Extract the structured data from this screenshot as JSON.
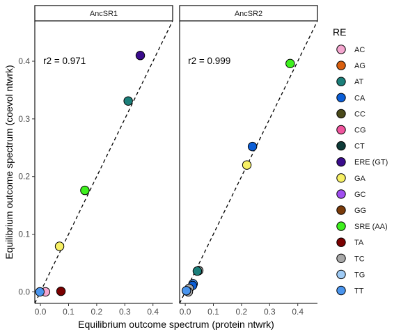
{
  "chart_data": {
    "type": "scatter",
    "xlabel": "Equilibrium outcome spectrum (protein ntwrk)",
    "ylabel": "Equilibrium outcome spectrum (coevol ntwrk)",
    "xlim": [
      -0.02,
      0.47
    ],
    "ylim": [
      -0.02,
      0.47
    ],
    "x_ticks": [
      0.0,
      0.1,
      0.2,
      0.3,
      0.4
    ],
    "y_ticks": [
      0.0,
      0.1,
      0.2,
      0.3,
      0.4
    ],
    "x_tick_labels": [
      "0.0",
      "0.1",
      "0.2",
      "0.3",
      "0.4"
    ],
    "y_tick_labels": [
      "0.0",
      "0.1",
      "0.2",
      "0.3",
      "0.4"
    ],
    "reference_line": "y = x (dashed)",
    "legend": {
      "title": "RE",
      "position": "right",
      "entries": [
        {
          "label": "AC",
          "color": "#F4A6CF"
        },
        {
          "label": "AG",
          "color": "#D95F0E"
        },
        {
          "label": "AT",
          "color": "#1B7F7A"
        },
        {
          "label": "CA",
          "color": "#0B5ED7"
        },
        {
          "label": "CC",
          "color": "#4A4A1A"
        },
        {
          "label": "CG",
          "color": "#F0559E"
        },
        {
          "label": "CT",
          "color": "#0E3B38"
        },
        {
          "label": "ERE (GT)",
          "color": "#3A0C8C"
        },
        {
          "label": "GA",
          "color": "#F7F065"
        },
        {
          "label": "GC",
          "color": "#A04DF0"
        },
        {
          "label": "GG",
          "color": "#7A3B0A"
        },
        {
          "label": "SRE (AA)",
          "color": "#3EF01E"
        },
        {
          "label": "TA",
          "color": "#7A0000"
        },
        {
          "label": "TC",
          "color": "#A8A8A8"
        },
        {
          "label": "TG",
          "color": "#9FCBF5"
        },
        {
          "label": "TT",
          "color": "#4A95EE"
        }
      ]
    },
    "panels": [
      {
        "strip": "AncSR1",
        "annotation": "r2 = 0.971",
        "points": [
          {
            "re": "ERE (GT)",
            "x": 0.355,
            "y": 0.41
          },
          {
            "re": "AT",
            "x": 0.312,
            "y": 0.331
          },
          {
            "re": "SRE (AA)",
            "x": 0.158,
            "y": 0.176
          },
          {
            "re": "GA",
            "x": 0.068,
            "y": 0.079
          },
          {
            "re": "TA",
            "x": 0.073,
            "y": 0.001
          },
          {
            "re": "AC",
            "x": 0.018,
            "y": 0.0
          },
          {
            "re": "TT",
            "x": -0.002,
            "y": 0.0
          }
        ]
      },
      {
        "strip": "AncSR2",
        "annotation": "r2 = 0.999",
        "points": [
          {
            "re": "SRE (AA)",
            "x": 0.373,
            "y": 0.396
          },
          {
            "re": "CA",
            "x": 0.239,
            "y": 0.252
          },
          {
            "re": "GA",
            "x": 0.219,
            "y": 0.22
          },
          {
            "re": "TC",
            "x": 0.048,
            "y": 0.037
          },
          {
            "re": "AT",
            "x": 0.043,
            "y": 0.036
          },
          {
            "re": "TT",
            "x": 0.028,
            "y": 0.014
          },
          {
            "re": "CA",
            "x": 0.026,
            "y": 0.011
          },
          {
            "re": "TC",
            "x": 0.014,
            "y": 0.006
          },
          {
            "re": "TC",
            "x": 0.011,
            "y": 0.0
          },
          {
            "re": "TT",
            "x": 0.004,
            "y": 0.002
          }
        ]
      }
    ]
  }
}
